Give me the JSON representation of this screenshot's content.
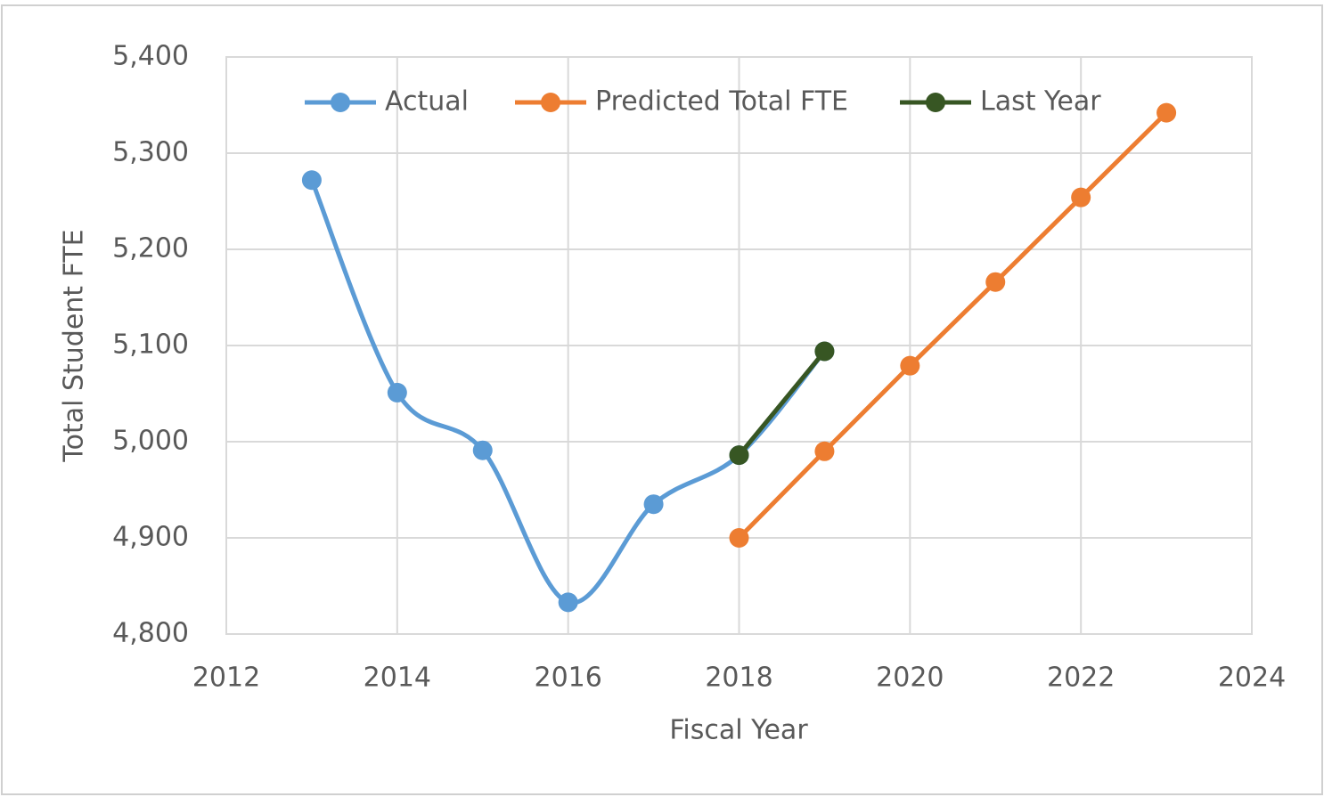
{
  "chart_data": {
    "type": "line",
    "x_label": "Fiscal Year",
    "y_label": "Total Student FTE",
    "series": [
      {
        "name": "Actual",
        "color": "#5b9bd5",
        "smooth": true,
        "x": [
          2013,
          2014,
          2015,
          2016,
          2017,
          2018,
          2019
        ],
        "values": [
          5272,
          5051,
          4991,
          4833,
          4935,
          4986,
          5094
        ]
      },
      {
        "name": "Predicted Total FTE",
        "color": "#ed7d31",
        "smooth": false,
        "x": [
          2018,
          2019,
          2020,
          2021,
          2022,
          2023
        ],
        "values": [
          4900,
          4990,
          5079,
          5166,
          5254,
          5342
        ]
      },
      {
        "name": "Last Year",
        "color": "#375623",
        "smooth": false,
        "x": [
          2018,
          2019
        ],
        "values": [
          4986,
          5094
        ]
      }
    ],
    "xlim": [
      2012,
      2024
    ],
    "xticks": [
      2012,
      2014,
      2016,
      2018,
      2020,
      2022,
      2024
    ],
    "ylim": [
      4800,
      5400
    ],
    "yticks": [
      {
        "value": 4800,
        "label": "4,800"
      },
      {
        "value": 4900,
        "label": "4,900"
      },
      {
        "value": 5000,
        "label": "5,000"
      },
      {
        "value": 5100,
        "label": "5,100"
      },
      {
        "value": 5200,
        "label": "5,200"
      },
      {
        "value": 5300,
        "label": "5,300"
      },
      {
        "value": 5400,
        "label": "5,400"
      }
    ],
    "grid": true,
    "legend": "top"
  }
}
